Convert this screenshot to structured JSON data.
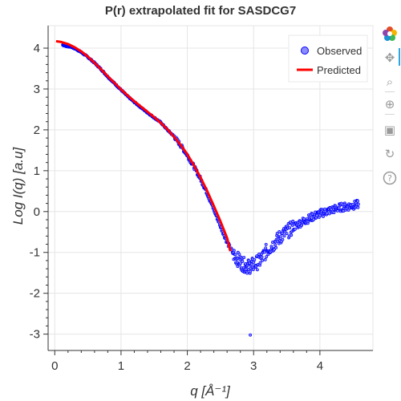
{
  "chart_data": {
    "type": "scatter",
    "title": "P(r) extrapolated fit for SASDCG7",
    "xlabel": "q [Å⁻¹]",
    "ylabel": "Log I(q) [a.u]",
    "xlim": [
      -0.1,
      4.8
    ],
    "ylim": [
      -3.4,
      4.55
    ],
    "x_ticks": [
      0,
      1,
      2,
      3,
      4
    ],
    "y_ticks": [
      -3,
      -2,
      -1,
      0,
      1,
      2,
      3,
      4
    ],
    "grid": true,
    "legend": {
      "placement": "top-right",
      "entries": [
        "Observed",
        "Predicted"
      ]
    },
    "series": [
      {
        "name": "Observed",
        "kind": "scatter",
        "color": "#0000ff",
        "fill": "#8c8cff",
        "points": [
          [
            0.12,
            4.08
          ],
          [
            0.18,
            4.05
          ],
          [
            0.25,
            4.03
          ],
          [
            0.32,
            3.98
          ],
          [
            0.4,
            3.9
          ],
          [
            0.5,
            3.78
          ],
          [
            0.6,
            3.64
          ],
          [
            0.7,
            3.48
          ],
          [
            0.8,
            3.3
          ],
          [
            0.9,
            3.14
          ],
          [
            1.0,
            2.98
          ],
          [
            1.1,
            2.82
          ],
          [
            1.2,
            2.68
          ],
          [
            1.3,
            2.55
          ],
          [
            1.4,
            2.42
          ],
          [
            1.5,
            2.3
          ],
          [
            1.6,
            2.18
          ],
          [
            1.7,
            2.0
          ],
          [
            1.8,
            1.84
          ],
          [
            1.9,
            1.62
          ],
          [
            2.0,
            1.38
          ],
          [
            2.1,
            1.1
          ],
          [
            2.2,
            0.8
          ],
          [
            2.3,
            0.45
          ],
          [
            2.4,
            0.05
          ],
          [
            2.5,
            -0.35
          ],
          [
            2.6,
            -0.75
          ],
          [
            2.7,
            -1.05
          ],
          [
            2.78,
            -1.2
          ],
          [
            2.85,
            -1.3
          ],
          [
            2.92,
            -1.35
          ],
          [
            3.0,
            -1.3
          ],
          [
            3.1,
            -1.2
          ],
          [
            3.2,
            -0.95
          ],
          [
            3.3,
            -0.8
          ],
          [
            3.4,
            -0.62
          ],
          [
            3.5,
            -0.5
          ],
          [
            3.6,
            -0.38
          ],
          [
            3.7,
            -0.28
          ],
          [
            3.8,
            -0.2
          ],
          [
            3.9,
            -0.12
          ],
          [
            4.0,
            -0.05
          ],
          [
            4.1,
            0.0
          ],
          [
            4.2,
            0.05
          ],
          [
            4.3,
            0.1
          ],
          [
            4.4,
            0.12
          ],
          [
            4.5,
            0.15
          ],
          [
            4.58,
            0.18
          ],
          [
            2.95,
            -3.02
          ]
        ]
      },
      {
        "name": "Predicted",
        "kind": "line",
        "color": "#ff0000",
        "x": [
          0.02,
          0.1,
          0.2,
          0.3,
          0.4,
          0.5,
          0.6,
          0.7,
          0.8,
          0.9,
          1.0,
          1.1,
          1.2,
          1.3,
          1.4,
          1.5,
          1.6,
          1.7,
          1.8,
          1.9,
          2.0,
          2.1,
          2.2,
          2.3,
          2.4,
          2.5,
          2.6,
          2.65
        ],
        "y": [
          4.17,
          4.15,
          4.1,
          4.02,
          3.92,
          3.79,
          3.64,
          3.48,
          3.31,
          3.15,
          2.99,
          2.84,
          2.7,
          2.57,
          2.44,
          2.31,
          2.17,
          2.01,
          1.83,
          1.63,
          1.4,
          1.13,
          0.83,
          0.5,
          0.14,
          -0.24,
          -0.65,
          -0.97
        ]
      }
    ]
  },
  "toolbar": {
    "items": [
      {
        "name": "bokeh-logo-icon"
      },
      {
        "name": "pan-tool-icon",
        "glyph": "✥"
      },
      {
        "name": "box-zoom-tool-icon",
        "glyph": "⌕"
      },
      {
        "name": "wheel-zoom-tool-icon",
        "glyph": "⊕"
      },
      {
        "name": "save-tool-icon",
        "glyph": "▣"
      },
      {
        "name": "reset-tool-icon",
        "glyph": "↻"
      },
      {
        "name": "help-tool-icon",
        "glyph": "?"
      }
    ]
  }
}
